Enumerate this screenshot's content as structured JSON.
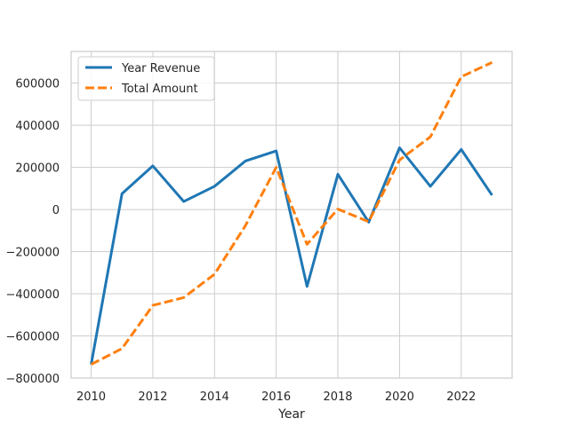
{
  "chart_data": {
    "type": "line",
    "title": "",
    "xlabel": "Year",
    "ylabel": "",
    "x": [
      2010,
      2011,
      2012,
      2013,
      2014,
      2015,
      2016,
      2017,
      2018,
      2019,
      2020,
      2021,
      2022,
      2023
    ],
    "xlim": [
      2009.35,
      2023.65
    ],
    "ylim": [
      -800000,
      750000
    ],
    "x_ticks": [
      2010,
      2012,
      2014,
      2016,
      2018,
      2020,
      2022
    ],
    "y_ticks": [
      -800000,
      -600000,
      -400000,
      -200000,
      0,
      200000,
      400000,
      600000
    ],
    "grid": true,
    "legend_position": "top-left",
    "series": [
      {
        "name": "Year Revenue",
        "style": "solid",
        "color": "#1f77b4",
        "values": [
          -735000,
          75000,
          207000,
          38000,
          110000,
          230000,
          278000,
          -365000,
          167000,
          -60000,
          293000,
          110000,
          285000,
          68000
        ]
      },
      {
        "name": "Total Amount",
        "style": "dashed",
        "color": "#ff7f0e",
        "values": [
          -735000,
          -660000,
          -455000,
          -418000,
          -307000,
          -77000,
          200000,
          -165000,
          2000,
          -58000,
          235000,
          345000,
          630000,
          698000
        ]
      }
    ]
  }
}
